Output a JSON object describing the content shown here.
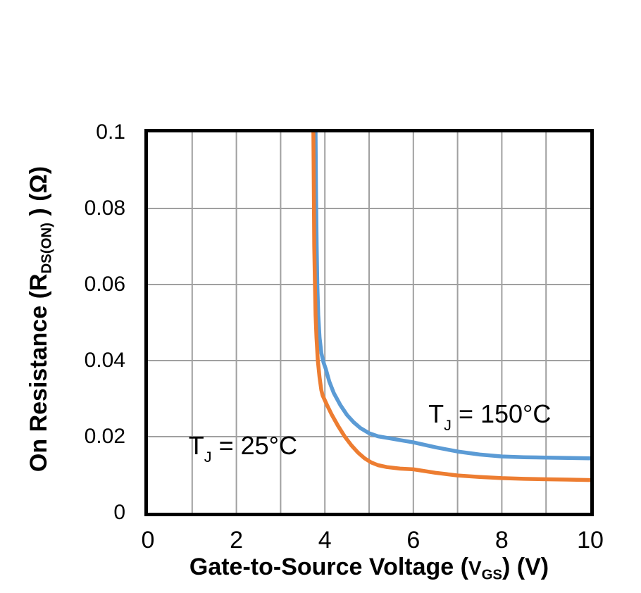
{
  "background_color": "#ffffff",
  "chart_data": {
    "type": "line",
    "title": "",
    "xlabel_parts": {
      "pre": "Gate-to-Source Voltage (",
      "v": "V",
      "sub": "GS",
      "post": ") (V)"
    },
    "ylabel_parts": {
      "pre": "On Resistance (R",
      "sub": "DS(ON)",
      "post": " ) (Ω)"
    },
    "xlim": [
      0,
      10
    ],
    "ylim": [
      0,
      0.1
    ],
    "x_tick_values": [
      0,
      2,
      4,
      6,
      8,
      10
    ],
    "x_tick_labels": [
      "0",
      "2",
      "4",
      "6",
      "8",
      "10"
    ],
    "y_tick_values": [
      0,
      0.02,
      0.04,
      0.06,
      0.08,
      0.1
    ],
    "y_tick_labels": [
      "0",
      "0.02",
      "0.04",
      "0.06",
      "0.08",
      "0.1"
    ],
    "x_grid_step": 1,
    "y_grid_step": 0.02,
    "grid": true,
    "grid_color": "#a0a0a0",
    "axis_color": "#000000",
    "legend_position": "none",
    "series": [
      {
        "name": "TJ = 150°C",
        "color": "#5B9BD5",
        "points": [
          [
            3.79,
            0.1
          ],
          [
            3.8,
            0.085
          ],
          [
            3.815,
            0.07
          ],
          [
            3.83,
            0.06
          ],
          [
            3.85,
            0.052
          ],
          [
            3.88,
            0.046
          ],
          [
            3.92,
            0.042
          ],
          [
            3.97,
            0.0395
          ],
          [
            4.02,
            0.0378
          ],
          [
            4.1,
            0.0345
          ],
          [
            4.2,
            0.0315
          ],
          [
            4.35,
            0.0283
          ],
          [
            4.5,
            0.0257
          ],
          [
            4.65,
            0.0238
          ],
          [
            4.8,
            0.0223
          ],
          [
            5.0,
            0.0209
          ],
          [
            5.2,
            0.0201
          ],
          [
            5.45,
            0.0196
          ],
          [
            5.7,
            0.0191
          ],
          [
            6.0,
            0.0185
          ],
          [
            6.5,
            0.0172
          ],
          [
            7.0,
            0.0161
          ],
          [
            7.5,
            0.0153
          ],
          [
            8.0,
            0.0148
          ],
          [
            8.5,
            0.0146
          ],
          [
            9.0,
            0.0145
          ],
          [
            9.5,
            0.0144
          ],
          [
            10.0,
            0.0143
          ]
        ]
      },
      {
        "name": "TJ = 25°C",
        "color": "#ED7D31",
        "points": [
          [
            3.74,
            0.1
          ],
          [
            3.75,
            0.085
          ],
          [
            3.76,
            0.07
          ],
          [
            3.775,
            0.06
          ],
          [
            3.79,
            0.052
          ],
          [
            3.81,
            0.046
          ],
          [
            3.84,
            0.04
          ],
          [
            3.88,
            0.0355
          ],
          [
            3.92,
            0.0322
          ],
          [
            3.95,
            0.0308
          ],
          [
            4.05,
            0.0283
          ],
          [
            4.15,
            0.0259
          ],
          [
            4.3,
            0.0228
          ],
          [
            4.45,
            0.02
          ],
          [
            4.6,
            0.0177
          ],
          [
            4.75,
            0.0158
          ],
          [
            4.9,
            0.0143
          ],
          [
            5.05,
            0.0132
          ],
          [
            5.2,
            0.0125
          ],
          [
            5.4,
            0.012
          ],
          [
            5.7,
            0.0116
          ],
          [
            6.0,
            0.0114
          ],
          [
            6.5,
            0.0105
          ],
          [
            7.0,
            0.0098
          ],
          [
            7.5,
            0.0094
          ],
          [
            8.0,
            0.0091
          ],
          [
            8.5,
            0.0089
          ],
          [
            9.0,
            0.0088
          ],
          [
            9.5,
            0.0087
          ],
          [
            10.0,
            0.0086
          ]
        ]
      }
    ],
    "annotations": [
      {
        "pre": "T",
        "sub": "J",
        "post": " = 25°C",
        "x": 0.92,
        "y": 0.0213
      },
      {
        "pre": "T",
        "sub": "J",
        "post": " = 150°C",
        "x": 6.34,
        "y": 0.0296
      }
    ]
  }
}
